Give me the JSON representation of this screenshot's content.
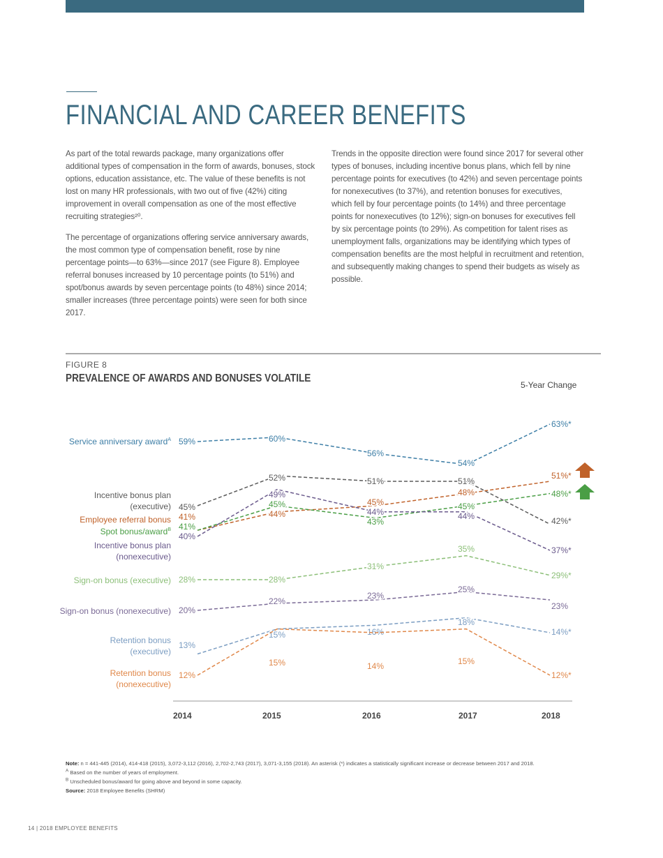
{
  "page": {
    "title": "FINANCIAL AND CAREER BENEFITS",
    "left_paragraphs": [
      "As part of the total rewards package, many organizations offer additional types of compensation in the form of awards, bonuses, stock options, education assistance, etc. The value of these benefits is not lost on many HR professionals, with two out of five (42%) citing improvement in overall compensation as one of the most effective recruiting strategies²⁰.",
      "The percentage of organizations offering service anniversary awards, the most common type of compensation benefit, rose by nine percentage points—to 63%—since 2017 (see Figure 8). Employee referral bonuses increased by 10 percentage points (to 51%) and spot/bonus awards by seven percentage points (to 48%) since 2014; smaller increases (three percentage points) were seen for both since 2017."
    ],
    "right_paragraphs": [
      "Trends in the opposite direction were found since 2017 for several other types of bonuses, including incentive bonus plans, which fell by nine percentage points for executives (to 42%) and seven percentage points for nonexecutives (to 37%), and retention bonuses for executives, which fell by four percentage points (to 14%) and three percentage points for nonexecutives (to 12%); sign-on bonuses for executives fell by six percentage points (to 29%). As competition for talent rises as unemployment falls, organizations may be identifying which types of compensation benefits are the most helpful in recruitment and retention, and subsequently making changes to spend their budgets as wisely as possible."
    ],
    "footer": "14  |  2018 EMPLOYEE BENEFITS"
  },
  "figure": {
    "label": "FIGURE 8",
    "title": "PREVALENCE OF AWARDS AND BONUSES VOLATILE",
    "change_header": "5-Year Change",
    "notes": {
      "note_label": "Note:",
      "note": " n = 441-445 (2014), 414-418 (2015), 3,072-3,112 (2016), 2,702-2,743 (2017), 3,071-3,155 (2018). An asterisk (*) indicates a statistically significant increase or decrease between 2017 and 2018.",
      "footnote_a_mark": "A",
      "footnote_a": " Based on the number of years of employment.",
      "footnote_b_mark": "B",
      "footnote_b": " Unscheduled bonus/award for going above and beyond in some capacity.",
      "source_label": "Source:",
      "source": " 2018 Employee Benefits (SHRM)"
    }
  },
  "chart_data": {
    "type": "line",
    "title": "PREVALENCE OF AWARDS AND BONUSES VOLATILE",
    "categories": [
      "2014",
      "2015",
      "2016",
      "2017",
      "2018"
    ],
    "unit": "%",
    "significance_marker": "*",
    "series": [
      {
        "name": "Service anniversary award",
        "sup": "A",
        "values": [
          59,
          60,
          56,
          54,
          63
        ],
        "significant_2018": true,
        "color": "#3d7ea6",
        "five_year_change": null
      },
      {
        "name": "Incentive bonus plan (executive)",
        "values": [
          45,
          52,
          51,
          51,
          42
        ],
        "significant_2018": true,
        "color": "#5a5a5a",
        "five_year_change": null
      },
      {
        "name": "Employee referral bonus",
        "values": [
          41,
          44,
          45,
          48,
          51
        ],
        "significant_2018": true,
        "color": "#c0622a",
        "five_year_change": "up"
      },
      {
        "name": "Spot bonus/award",
        "sup": "B",
        "values": [
          41,
          45,
          43,
          45,
          48
        ],
        "significant_2018": true,
        "color": "#4a9e45",
        "five_year_change": "up"
      },
      {
        "name": "Incentive bonus plan (nonexecutive)",
        "values": [
          40,
          49,
          44,
          44,
          37
        ],
        "significant_2018": true,
        "color": "#6a5a8c",
        "five_year_change": null
      },
      {
        "name": "Sign-on bonus (executive)",
        "values": [
          28,
          28,
          31,
          35,
          29
        ],
        "significant_2018": true,
        "color": "#8cbf78",
        "five_year_change": null
      },
      {
        "name": "Sign-on bonus (nonexecutive)",
        "values": [
          20,
          22,
          23,
          25,
          23
        ],
        "significant_2018": false,
        "color": "#7a6a96",
        "five_year_change": null
      },
      {
        "name": "Retention bonus (executive)",
        "values": [
          13,
          15,
          16,
          18,
          14
        ],
        "significant_2018": true,
        "color": "#7b9dc2",
        "five_year_change": null
      },
      {
        "name": "Retention bonus (nonexecutive)",
        "values": [
          12,
          15,
          14,
          15,
          12
        ],
        "significant_2018": true,
        "color": "#e0884a",
        "five_year_change": null
      }
    ],
    "labels_display": [
      [
        "Service anniversary award"
      ],
      [
        "Incentive bonus plan",
        "(executive)"
      ],
      [
        "Employee referral bonus"
      ],
      [
        "Spot bonus/award"
      ],
      [
        "Incentive bonus plan",
        "(nonexecutive)"
      ],
      [
        "Sign-on bonus (executive)"
      ],
      [
        "Sign-on bonus (nonexecutive)"
      ],
      [
        "Retention bonus",
        "(executive)"
      ],
      [
        "Retention bonus",
        "(nonexecutive)"
      ]
    ]
  }
}
